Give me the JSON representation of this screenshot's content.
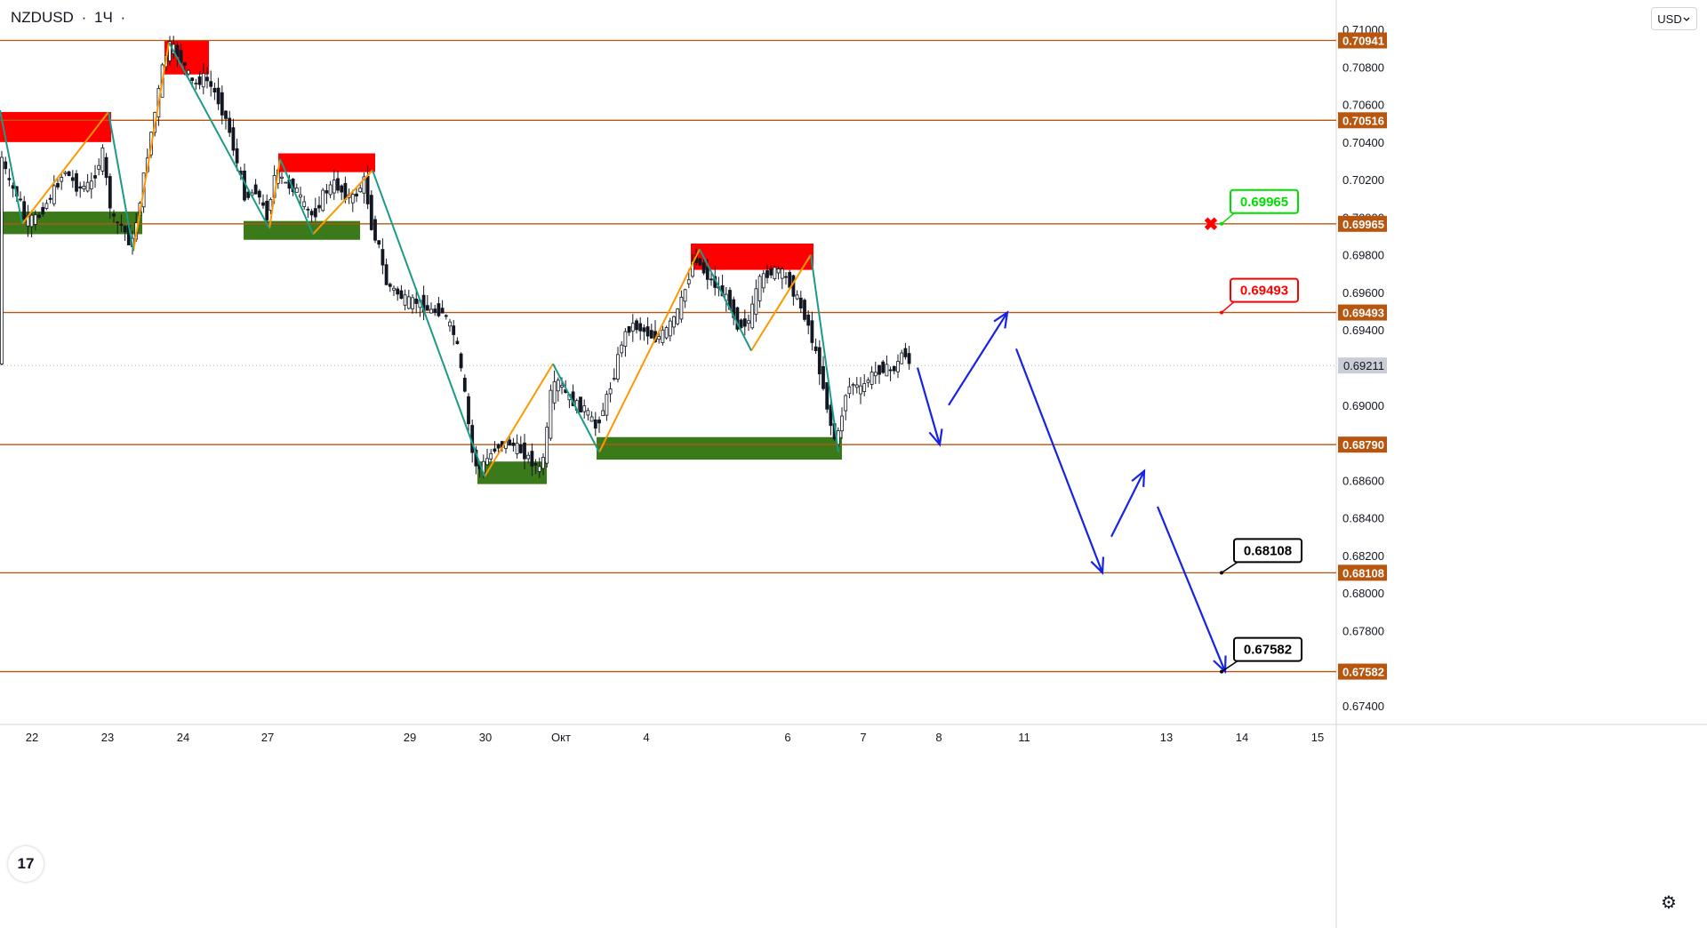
{
  "header": {
    "symbol": "NZDUSD",
    "separator": "·",
    "interval": "1Ч",
    "dot": "·"
  },
  "currency_select": {
    "label": "USD",
    "icon": "chevron-down-icon"
  },
  "logo": {
    "text": "17",
    "icon": "tradingview-logo-icon"
  },
  "settings": {
    "icon": "gear-icon",
    "glyph": "⚙"
  },
  "colors": {
    "level": "#b8550f",
    "level_label_bg": "#b8550f",
    "supply": "#ff0000",
    "demand": "#3a7a1a",
    "up_swing": "#ff9800",
    "down_swing": "#1c9a88",
    "forecast": "#1722e8",
    "candle": "#131722",
    "green_callout": "#00dd00",
    "red_callout": "#ff0000",
    "black_callout": "#000000",
    "current_price_bg": "#c9cdd6"
  },
  "chart_data": {
    "type": "candlestick",
    "symbol": "NZDUSD",
    "interval": "1Ч",
    "ylim": [
      0.6728,
      0.7102
    ],
    "x_dates": [
      "22",
      "23",
      "24",
      "27",
      "29",
      "30",
      "Окт",
      "4",
      "6",
      "7",
      "8",
      "11",
      "13",
      "14",
      "15"
    ],
    "y_ticks": [
      "0.71000",
      "0.70800",
      "0.70600",
      "0.70400",
      "0.70200",
      "0.70000",
      "0.69800",
      "0.69600",
      "0.69400",
      "0.69000",
      "0.68600",
      "0.68400",
      "0.68200",
      "0.68000",
      "0.67800",
      "0.67400"
    ],
    "levels": [
      {
        "label": "0.70941",
        "value": 0.70941
      },
      {
        "label": "0.70516",
        "value": 0.70516
      },
      {
        "label": "0.69965",
        "value": 0.69965
      },
      {
        "label": "0.69493",
        "value": 0.69493
      },
      {
        "label": "0.68790",
        "value": 0.6879
      },
      {
        "label": "0.68108",
        "value": 0.68108
      },
      {
        "label": "0.67582",
        "value": 0.67582
      }
    ],
    "current_price": {
      "label": "0.69211",
      "value": 0.69211
    },
    "price_path": [
      [
        0,
        0.7055
      ],
      [
        4,
        0.7032
      ],
      [
        12,
        0.7018
      ],
      [
        24,
        0.701
      ],
      [
        30,
        0.6998
      ],
      [
        45,
        0.7
      ],
      [
        60,
        0.7012
      ],
      [
        75,
        0.7025
      ],
      [
        90,
        0.7015
      ],
      [
        105,
        0.7018
      ],
      [
        118,
        0.7035
      ],
      [
        124,
        0.701
      ],
      [
        130,
        0.6998
      ],
      [
        140,
        0.6995
      ],
      [
        150,
        0.6984
      ],
      [
        158,
        0.7005
      ],
      [
        165,
        0.7025
      ],
      [
        172,
        0.7045
      ],
      [
        178,
        0.706
      ],
      [
        185,
        0.708
      ],
      [
        192,
        0.7092
      ],
      [
        200,
        0.7088
      ],
      [
        210,
        0.708
      ],
      [
        220,
        0.707
      ],
      [
        232,
        0.7075
      ],
      [
        245,
        0.7065
      ],
      [
        258,
        0.705
      ],
      [
        268,
        0.703
      ],
      [
        278,
        0.701
      ],
      [
        290,
        0.7015
      ],
      [
        302,
        0.7
      ],
      [
        312,
        0.7025
      ],
      [
        322,
        0.7018
      ],
      [
        335,
        0.7015
      ],
      [
        345,
        0.7005
      ],
      [
        355,
        0.7
      ],
      [
        365,
        0.7012
      ],
      [
        378,
        0.7018
      ],
      [
        390,
        0.7012
      ],
      [
        400,
        0.701
      ],
      [
        412,
        0.702
      ],
      [
        420,
        0.6995
      ],
      [
        428,
        0.6985
      ],
      [
        436,
        0.6965
      ],
      [
        448,
        0.696
      ],
      [
        460,
        0.6955
      ],
      [
        472,
        0.6955
      ],
      [
        485,
        0.695
      ],
      [
        500,
        0.695
      ],
      [
        515,
        0.6935
      ],
      [
        525,
        0.6905
      ],
      [
        533,
        0.6875
      ],
      [
        540,
        0.6865
      ],
      [
        548,
        0.687
      ],
      [
        560,
        0.6878
      ],
      [
        575,
        0.688
      ],
      [
        590,
        0.6875
      ],
      [
        600,
        0.687
      ],
      [
        610,
        0.6865
      ],
      [
        616,
        0.688
      ],
      [
        622,
        0.6908
      ],
      [
        630,
        0.6912
      ],
      [
        640,
        0.6905
      ],
      [
        650,
        0.69
      ],
      [
        660,
        0.6898
      ],
      [
        672,
        0.6888
      ],
      [
        682,
        0.69
      ],
      [
        692,
        0.6915
      ],
      [
        702,
        0.6935
      ],
      [
        712,
        0.6943
      ],
      [
        725,
        0.694
      ],
      [
        740,
        0.6935
      ],
      [
        752,
        0.694
      ],
      [
        765,
        0.695
      ],
      [
        775,
        0.6965
      ],
      [
        783,
        0.698
      ],
      [
        795,
        0.697
      ],
      [
        810,
        0.6962
      ],
      [
        822,
        0.6955
      ],
      [
        832,
        0.6942
      ],
      [
        845,
        0.6945
      ],
      [
        855,
        0.6965
      ],
      [
        865,
        0.697
      ],
      [
        878,
        0.6972
      ],
      [
        890,
        0.6965
      ],
      [
        900,
        0.6955
      ],
      [
        910,
        0.6945
      ],
      [
        918,
        0.693
      ],
      [
        926,
        0.6915
      ],
      [
        934,
        0.6895
      ],
      [
        940,
        0.6882
      ],
      [
        946,
        0.6885
      ],
      [
        952,
        0.6905
      ],
      [
        960,
        0.6912
      ],
      [
        970,
        0.6908
      ],
      [
        980,
        0.6915
      ],
      [
        995,
        0.692
      ],
      [
        1005,
        0.6918
      ],
      [
        1012,
        0.6922
      ],
      [
        1018,
        0.693
      ],
      [
        1025,
        0.6922
      ]
    ],
    "supply_zones": [
      {
        "x0": 0,
        "x1": 125,
        "y0": 0.7056,
        "y1": 0.704
      },
      {
        "x0": 185,
        "x1": 235,
        "y0": 0.70941,
        "y1": 0.7076
      },
      {
        "x0": 313,
        "x1": 422,
        "y0": 0.7034,
        "y1": 0.7024
      },
      {
        "x0": 777,
        "x1": 915,
        "y0": 0.6986,
        "y1": 0.6972
      }
    ],
    "demand_zones": [
      {
        "x0": 0,
        "x1": 160,
        "y0": 0.7003,
        "y1": 0.6991
      },
      {
        "x0": 274,
        "x1": 405,
        "y0": 0.6998,
        "y1": 0.6988
      },
      {
        "x0": 537,
        "x1": 615,
        "y0": 0.687,
        "y1": 0.6858
      },
      {
        "x0": 671,
        "x1": 947,
        "y0": 0.6883,
        "y1": 0.6871
      }
    ],
    "up_swings": [
      [
        [
          25,
          0.69965
        ],
        [
          122,
          0.7056
        ]
      ],
      [
        [
          150,
          0.6982
        ],
        [
          190,
          0.7093
        ]
      ],
      [
        [
          303,
          0.6994
        ],
        [
          315,
          0.7031
        ]
      ],
      [
        [
          352,
          0.6991
        ],
        [
          419,
          0.7025
        ]
      ],
      [
        [
          545,
          0.6862
        ],
        [
          622,
          0.6922
        ]
      ],
      [
        [
          674,
          0.6875
        ],
        [
          787,
          0.6983
        ]
      ],
      [
        [
          845,
          0.6929
        ],
        [
          912,
          0.698
        ]
      ]
    ],
    "down_swings": [
      [
        [
          0,
          0.7057
        ],
        [
          25,
          0.69965
        ]
      ],
      [
        [
          122,
          0.7056
        ],
        [
          150,
          0.6982
        ]
      ],
      [
        [
          190,
          0.7093
        ],
        [
          303,
          0.6994
        ]
      ],
      [
        [
          315,
          0.7031
        ],
        [
          352,
          0.6991
        ]
      ],
      [
        [
          419,
          0.7025
        ],
        [
          545,
          0.6862
        ]
      ],
      [
        [
          622,
          0.6922
        ],
        [
          674,
          0.6875
        ]
      ],
      [
        [
          787,
          0.6983
        ],
        [
          845,
          0.6929
        ]
      ],
      [
        [
          912,
          0.698
        ],
        [
          943,
          0.6875
        ]
      ]
    ],
    "forecast": [
      [
        [
          1032,
          0.692
        ],
        [
          1057,
          0.6879
        ]
      ],
      [
        [
          1067,
          0.69
        ],
        [
          1133,
          0.69493
        ]
      ],
      [
        [
          1143,
          0.693
        ],
        [
          1240,
          0.68108
        ]
      ],
      [
        [
          1250,
          0.683
        ],
        [
          1287,
          0.6865
        ]
      ],
      [
        [
          1302,
          0.6846
        ],
        [
          1378,
          0.67582
        ]
      ]
    ],
    "callouts": [
      {
        "label": "0.69965",
        "value": 0.69965,
        "color": "green"
      },
      {
        "label": "0.69493",
        "value": 0.69493,
        "color": "red"
      },
      {
        "label": "0.68108",
        "value": 0.68108,
        "color": "black"
      },
      {
        "label": "0.67582",
        "value": 0.67582,
        "color": "black"
      }
    ],
    "cancel_marker": {
      "value": 0.69965,
      "glyph": "✖"
    }
  }
}
